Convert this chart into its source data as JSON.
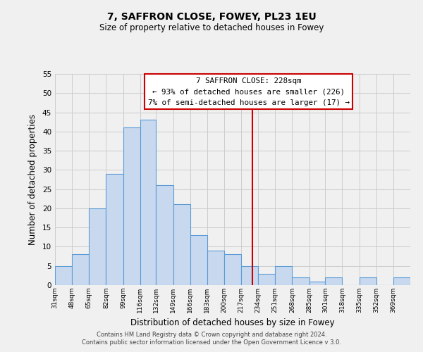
{
  "title": "7, SAFFRON CLOSE, FOWEY, PL23 1EU",
  "subtitle": "Size of property relative to detached houses in Fowey",
  "xlabel": "Distribution of detached houses by size in Fowey",
  "ylabel": "Number of detached properties",
  "footer_line1": "Contains HM Land Registry data © Crown copyright and database right 2024.",
  "footer_line2": "Contains public sector information licensed under the Open Government Licence v 3.0.",
  "bin_labels": [
    "31sqm",
    "48sqm",
    "65sqm",
    "82sqm",
    "99sqm",
    "116sqm",
    "132sqm",
    "149sqm",
    "166sqm",
    "183sqm",
    "200sqm",
    "217sqm",
    "234sqm",
    "251sqm",
    "268sqm",
    "285sqm",
    "301sqm",
    "318sqm",
    "335sqm",
    "352sqm",
    "369sqm"
  ],
  "bin_edges": [
    31,
    48,
    65,
    82,
    99,
    116,
    132,
    149,
    166,
    183,
    200,
    217,
    234,
    251,
    268,
    285,
    301,
    318,
    335,
    352,
    369,
    386
  ],
  "counts": [
    5,
    8,
    20,
    29,
    41,
    43,
    26,
    21,
    13,
    9,
    8,
    5,
    3,
    5,
    2,
    1,
    2,
    0,
    2,
    0,
    2
  ],
  "bar_facecolor": "#c8d9ef",
  "bar_edgecolor": "#5b9bd5",
  "property_value": 228,
  "vline_color": "#cc0000",
  "annotation_line1": "7 SAFFRON CLOSE: 228sqm",
  "annotation_line2": "← 93% of detached houses are smaller (226)",
  "annotation_line3": "7% of semi-detached houses are larger (17) →",
  "annotation_facecolor": "#ffffff",
  "annotation_edgecolor": "#cc0000",
  "ylim": [
    0,
    55
  ],
  "yticks": [
    0,
    5,
    10,
    15,
    20,
    25,
    30,
    35,
    40,
    45,
    50,
    55
  ],
  "grid_color": "#cccccc",
  "background_color": "#f0f0f0"
}
